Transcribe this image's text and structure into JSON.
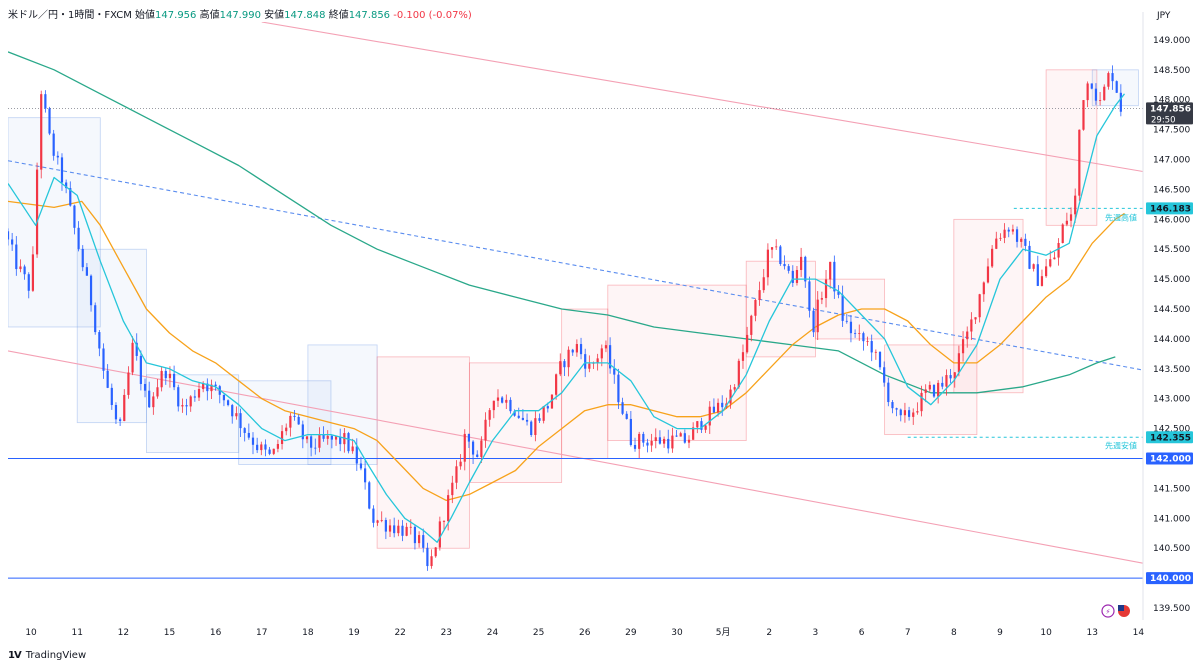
{
  "header": {
    "symbol": "米ドル／円・1時間・FXCM",
    "open_label": "始値",
    "open": "147.956",
    "high_label": "高値",
    "high": "147.990",
    "low_label": "安値",
    "low": "147.848",
    "close_label": "終値",
    "close": "147.856",
    "change": "-0.100 (-0.07%)"
  },
  "currency_label": "JPY",
  "brand": "TradingView",
  "colors": {
    "up": "#f23645",
    "down": "#2962ff",
    "ema_fast": "#26c6da",
    "ema_mid": "#f7a21b",
    "ema_slow": "#2aa88a",
    "trend_pink": "#f4a0b4",
    "trend_dashed": "#5b8def",
    "level": "#2962ff",
    "label_bg": "#363a45"
  },
  "chart_data": {
    "type": "candlestick",
    "title": "米ドル／円・1時間・FXCM",
    "ylim": [
      139.3,
      149.3
    ],
    "y_ticks": [
      "139.500",
      "140.000",
      "140.500",
      "141.000",
      "141.500",
      "142.000",
      "142.500",
      "143.000",
      "143.500",
      "144.000",
      "144.500",
      "145.000",
      "145.500",
      "146.000",
      "146.500",
      "147.000",
      "147.500",
      "148.000",
      "148.500",
      "149.000"
    ],
    "x_range": [
      0,
      24.6
    ],
    "x_ticks": [
      {
        "pos": 0.5,
        "label": "10"
      },
      {
        "pos": 1.5,
        "label": "11"
      },
      {
        "pos": 2.5,
        "label": "12"
      },
      {
        "pos": 3.5,
        "label": "15"
      },
      {
        "pos": 4.5,
        "label": "16"
      },
      {
        "pos": 5.5,
        "label": "17"
      },
      {
        "pos": 6.5,
        "label": "18"
      },
      {
        "pos": 7.5,
        "label": "19"
      },
      {
        "pos": 8.5,
        "label": "22"
      },
      {
        "pos": 9.5,
        "label": "23"
      },
      {
        "pos": 10.5,
        "label": "24"
      },
      {
        "pos": 11.5,
        "label": "25"
      },
      {
        "pos": 12.5,
        "label": "26"
      },
      {
        "pos": 13.5,
        "label": "29"
      },
      {
        "pos": 14.5,
        "label": "30"
      },
      {
        "pos": 15.5,
        "label": "5月"
      },
      {
        "pos": 16.5,
        "label": "2"
      },
      {
        "pos": 17.5,
        "label": "3"
      },
      {
        "pos": 18.5,
        "label": "6"
      },
      {
        "pos": 19.5,
        "label": "7"
      },
      {
        "pos": 20.5,
        "label": "8"
      },
      {
        "pos": 21.5,
        "label": "9"
      },
      {
        "pos": 22.5,
        "label": "10"
      },
      {
        "pos": 23.5,
        "label": "13"
      },
      {
        "pos": 24.5,
        "label": "14"
      }
    ],
    "price_path": [
      [
        0.0,
        145.8
      ],
      [
        0.3,
        145.2
      ],
      [
        0.6,
        144.8
      ],
      [
        0.8,
        148.2
      ],
      [
        1.0,
        147.3
      ],
      [
        1.3,
        146.6
      ],
      [
        1.6,
        145.6
      ],
      [
        1.9,
        144.6
      ],
      [
        2.2,
        143.3
      ],
      [
        2.5,
        142.4
      ],
      [
        2.8,
        143.9
      ],
      [
        3.1,
        142.9
      ],
      [
        3.5,
        143.5
      ],
      [
        3.9,
        142.8
      ],
      [
        4.3,
        143.3
      ],
      [
        4.8,
        143.0
      ],
      [
        5.2,
        142.5
      ],
      [
        5.5,
        142.2
      ],
      [
        5.8,
        142.0
      ],
      [
        6.2,
        142.7
      ],
      [
        6.6,
        142.2
      ],
      [
        7.0,
        142.3
      ],
      [
        7.4,
        142.3
      ],
      [
        7.7,
        141.9
      ],
      [
        8.0,
        141.0
      ],
      [
        8.3,
        140.9
      ],
      [
        8.7,
        140.8
      ],
      [
        9.0,
        140.6
      ],
      [
        9.2,
        140.1
      ],
      [
        9.5,
        141.0
      ],
      [
        9.8,
        141.7
      ],
      [
        10.0,
        142.4
      ],
      [
        10.3,
        142.0
      ],
      [
        10.6,
        143.1
      ],
      [
        11.0,
        142.9
      ],
      [
        11.4,
        142.5
      ],
      [
        11.8,
        142.9
      ],
      [
        12.1,
        143.6
      ],
      [
        12.4,
        143.9
      ],
      [
        12.7,
        143.5
      ],
      [
        13.0,
        143.9
      ],
      [
        13.3,
        143.1
      ],
      [
        13.6,
        142.3
      ],
      [
        14.0,
        142.3
      ],
      [
        14.4,
        142.3
      ],
      [
        14.8,
        142.3
      ],
      [
        15.1,
        142.6
      ],
      [
        15.4,
        142.8
      ],
      [
        15.7,
        143.0
      ],
      [
        16.0,
        143.7
      ],
      [
        16.3,
        144.6
      ],
      [
        16.6,
        145.5
      ],
      [
        16.9,
        145.3
      ],
      [
        17.1,
        144.9
      ],
      [
        17.3,
        145.5
      ],
      [
        17.5,
        144.1
      ],
      [
        17.7,
        144.7
      ],
      [
        17.9,
        145.2
      ],
      [
        18.2,
        144.3
      ],
      [
        18.5,
        144.0
      ],
      [
        18.8,
        143.9
      ],
      [
        19.1,
        143.2
      ],
      [
        19.4,
        142.6
      ],
      [
        19.7,
        142.8
      ],
      [
        20.0,
        143.1
      ],
      [
        20.3,
        143.2
      ],
      [
        20.6,
        143.5
      ],
      [
        20.9,
        144.1
      ],
      [
        21.1,
        144.6
      ],
      [
        21.3,
        145.2
      ],
      [
        21.5,
        145.7
      ],
      [
        21.8,
        145.9
      ],
      [
        22.1,
        145.5
      ],
      [
        22.4,
        145.0
      ],
      [
        22.8,
        145.4
      ],
      [
        23.0,
        146.0
      ],
      [
        23.2,
        146.1
      ],
      [
        23.35,
        148.0
      ],
      [
        23.55,
        148.4
      ],
      [
        23.75,
        147.9
      ],
      [
        23.9,
        148.3
      ],
      [
        24.0,
        148.5
      ],
      [
        24.15,
        148.1
      ],
      [
        24.2,
        147.856
      ]
    ],
    "ema_fast_path": [
      [
        0.0,
        146.6
      ],
      [
        0.6,
        145.9
      ],
      [
        1.0,
        146.7
      ],
      [
        1.5,
        146.4
      ],
      [
        2.0,
        145.3
      ],
      [
        2.5,
        144.3
      ],
      [
        3.0,
        143.6
      ],
      [
        3.5,
        143.5
      ],
      [
        4.0,
        143.3
      ],
      [
        4.5,
        143.2
      ],
      [
        5.0,
        142.9
      ],
      [
        5.5,
        142.5
      ],
      [
        6.0,
        142.3
      ],
      [
        6.5,
        142.4
      ],
      [
        7.0,
        142.4
      ],
      [
        7.5,
        142.3
      ],
      [
        7.8,
        141.9
      ],
      [
        8.2,
        141.4
      ],
      [
        8.6,
        141.0
      ],
      [
        9.0,
        140.8
      ],
      [
        9.3,
        140.6
      ],
      [
        9.6,
        141.0
      ],
      [
        10.0,
        141.6
      ],
      [
        10.5,
        142.3
      ],
      [
        11.0,
        142.8
      ],
      [
        11.5,
        142.8
      ],
      [
        12.0,
        143.1
      ],
      [
        12.5,
        143.6
      ],
      [
        13.0,
        143.6
      ],
      [
        13.5,
        143.3
      ],
      [
        14.0,
        142.7
      ],
      [
        14.5,
        142.5
      ],
      [
        15.0,
        142.5
      ],
      [
        15.5,
        142.8
      ],
      [
        16.0,
        143.4
      ],
      [
        16.5,
        144.3
      ],
      [
        17.0,
        145.0
      ],
      [
        17.5,
        145.0
      ],
      [
        18.0,
        144.8
      ],
      [
        18.5,
        144.4
      ],
      [
        19.0,
        144.0
      ],
      [
        19.5,
        143.2
      ],
      [
        20.0,
        142.9
      ],
      [
        20.5,
        143.3
      ],
      [
        21.0,
        143.9
      ],
      [
        21.5,
        145.0
      ],
      [
        22.0,
        145.5
      ],
      [
        22.5,
        145.4
      ],
      [
        23.0,
        145.6
      ],
      [
        23.3,
        146.5
      ],
      [
        23.6,
        147.4
      ],
      [
        24.0,
        147.9
      ],
      [
        24.2,
        148.1
      ]
    ],
    "ema_mid_path": [
      [
        0.0,
        146.3
      ],
      [
        1.0,
        146.2
      ],
      [
        1.6,
        146.3
      ],
      [
        2.0,
        145.9
      ],
      [
        2.5,
        145.2
      ],
      [
        3.0,
        144.5
      ],
      [
        3.5,
        144.1
      ],
      [
        4.0,
        143.8
      ],
      [
        4.5,
        143.6
      ],
      [
        5.0,
        143.3
      ],
      [
        5.5,
        143.0
      ],
      [
        6.0,
        142.8
      ],
      [
        6.5,
        142.7
      ],
      [
        7.0,
        142.6
      ],
      [
        7.5,
        142.5
      ],
      [
        8.0,
        142.3
      ],
      [
        8.5,
        141.9
      ],
      [
        9.0,
        141.5
      ],
      [
        9.5,
        141.3
      ],
      [
        10.0,
        141.4
      ],
      [
        10.5,
        141.6
      ],
      [
        11.0,
        141.8
      ],
      [
        11.5,
        142.2
      ],
      [
        12.0,
        142.5
      ],
      [
        12.5,
        142.8
      ],
      [
        13.0,
        142.9
      ],
      [
        13.5,
        142.9
      ],
      [
        14.0,
        142.8
      ],
      [
        14.5,
        142.7
      ],
      [
        15.0,
        142.7
      ],
      [
        15.5,
        142.8
      ],
      [
        16.0,
        143.1
      ],
      [
        16.5,
        143.5
      ],
      [
        17.0,
        143.9
      ],
      [
        17.5,
        144.2
      ],
      [
        18.0,
        144.4
      ],
      [
        18.5,
        144.5
      ],
      [
        19.0,
        144.5
      ],
      [
        19.5,
        144.3
      ],
      [
        20.0,
        143.9
      ],
      [
        20.5,
        143.6
      ],
      [
        21.0,
        143.6
      ],
      [
        21.5,
        143.9
      ],
      [
        22.0,
        144.3
      ],
      [
        22.5,
        144.7
      ],
      [
        23.0,
        145.0
      ],
      [
        23.5,
        145.6
      ],
      [
        24.0,
        146.0
      ],
      [
        24.2,
        146.1
      ]
    ],
    "ema_slow_path": [
      [
        0.0,
        148.8
      ],
      [
        1.0,
        148.5
      ],
      [
        2.0,
        148.1
      ],
      [
        3.0,
        147.7
      ],
      [
        4.0,
        147.3
      ],
      [
        5.0,
        146.9
      ],
      [
        6.0,
        146.4
      ],
      [
        7.0,
        145.9
      ],
      [
        8.0,
        145.5
      ],
      [
        9.0,
        145.2
      ],
      [
        10.0,
        144.9
      ],
      [
        11.0,
        144.7
      ],
      [
        12.0,
        144.5
      ],
      [
        13.0,
        144.4
      ],
      [
        14.0,
        144.2
      ],
      [
        15.0,
        144.1
      ],
      [
        16.0,
        144.0
      ],
      [
        17.0,
        143.9
      ],
      [
        18.0,
        143.8
      ],
      [
        19.0,
        143.4
      ],
      [
        20.0,
        143.1
      ],
      [
        21.0,
        143.1
      ],
      [
        22.0,
        143.2
      ],
      [
        23.0,
        143.4
      ],
      [
        23.6,
        143.6
      ],
      [
        24.0,
        143.7
      ]
    ],
    "trendlines": [
      {
        "name": "upper-channel-line",
        "style": "solid",
        "color": "pink",
        "from": [
          5.5,
          149.3
        ],
        "to": [
          24.6,
          146.8
        ]
      },
      {
        "name": "lower-channel-line",
        "style": "solid",
        "color": "pink",
        "from": [
          0.0,
          143.8
        ],
        "to": [
          24.6,
          140.25
        ]
      },
      {
        "name": "dashed-trend-line",
        "style": "dashed",
        "color": "blue",
        "from": [
          0.0,
          146.98
        ],
        "to": [
          24.6,
          143.48
        ]
      }
    ],
    "horizontal_levels": [
      {
        "name": "level-142",
        "value": 142.0,
        "label": "142.000"
      },
      {
        "name": "level-140",
        "value": 140.0,
        "label": "140.000"
      }
    ],
    "current_price": {
      "value": 147.856,
      "label": "147.856",
      "countdown": "29:50"
    },
    "last_week_high": {
      "value": 146.183,
      "label": "146.183",
      "note": "先週高値",
      "from": 21.8
    },
    "last_week_low": {
      "value": 142.355,
      "label": "142.355",
      "note": "先週安値",
      "from": 19.5
    },
    "range_boxes": [
      {
        "x0": 0.0,
        "x1": 2.0,
        "y0": 144.2,
        "y1": 147.7,
        "tone": "blue"
      },
      {
        "x0": 1.5,
        "x1": 3.0,
        "y0": 142.6,
        "y1": 145.5,
        "tone": "blue"
      },
      {
        "x0": 3.0,
        "x1": 5.0,
        "y0": 142.1,
        "y1": 143.4,
        "tone": "blue"
      },
      {
        "x0": 5.0,
        "x1": 7.0,
        "y0": 141.9,
        "y1": 143.3,
        "tone": "blue"
      },
      {
        "x0": 6.5,
        "x1": 8.0,
        "y0": 141.9,
        "y1": 143.9,
        "tone": "blue"
      },
      {
        "x0": 8.0,
        "x1": 10.0,
        "y0": 140.5,
        "y1": 143.7,
        "tone": "pink"
      },
      {
        "x0": 10.0,
        "x1": 12.0,
        "y0": 141.6,
        "y1": 143.6,
        "tone": "pink"
      },
      {
        "x0": 12.0,
        "x1": 13.0,
        "y0": 142.0,
        "y1": 144.5,
        "tone": "pink"
      },
      {
        "x0": 13.0,
        "x1": 16.0,
        "y0": 142.3,
        "y1": 144.9,
        "tone": "pink"
      },
      {
        "x0": 16.0,
        "x1": 17.5,
        "y0": 143.7,
        "y1": 145.3,
        "tone": "pink"
      },
      {
        "x0": 17.5,
        "x1": 19.0,
        "y0": 144.0,
        "y1": 145.0,
        "tone": "pink"
      },
      {
        "x0": 19.0,
        "x1": 21.0,
        "y0": 142.4,
        "y1": 143.9,
        "tone": "pink"
      },
      {
        "x0": 20.5,
        "x1": 22.0,
        "y0": 143.1,
        "y1": 146.0,
        "tone": "pink"
      },
      {
        "x0": 22.5,
        "x1": 23.6,
        "y0": 145.9,
        "y1": 148.5,
        "tone": "pink"
      },
      {
        "x0": 23.5,
        "x1": 24.5,
        "y0": 147.9,
        "y1": 148.5,
        "tone": "blue"
      }
    ]
  }
}
